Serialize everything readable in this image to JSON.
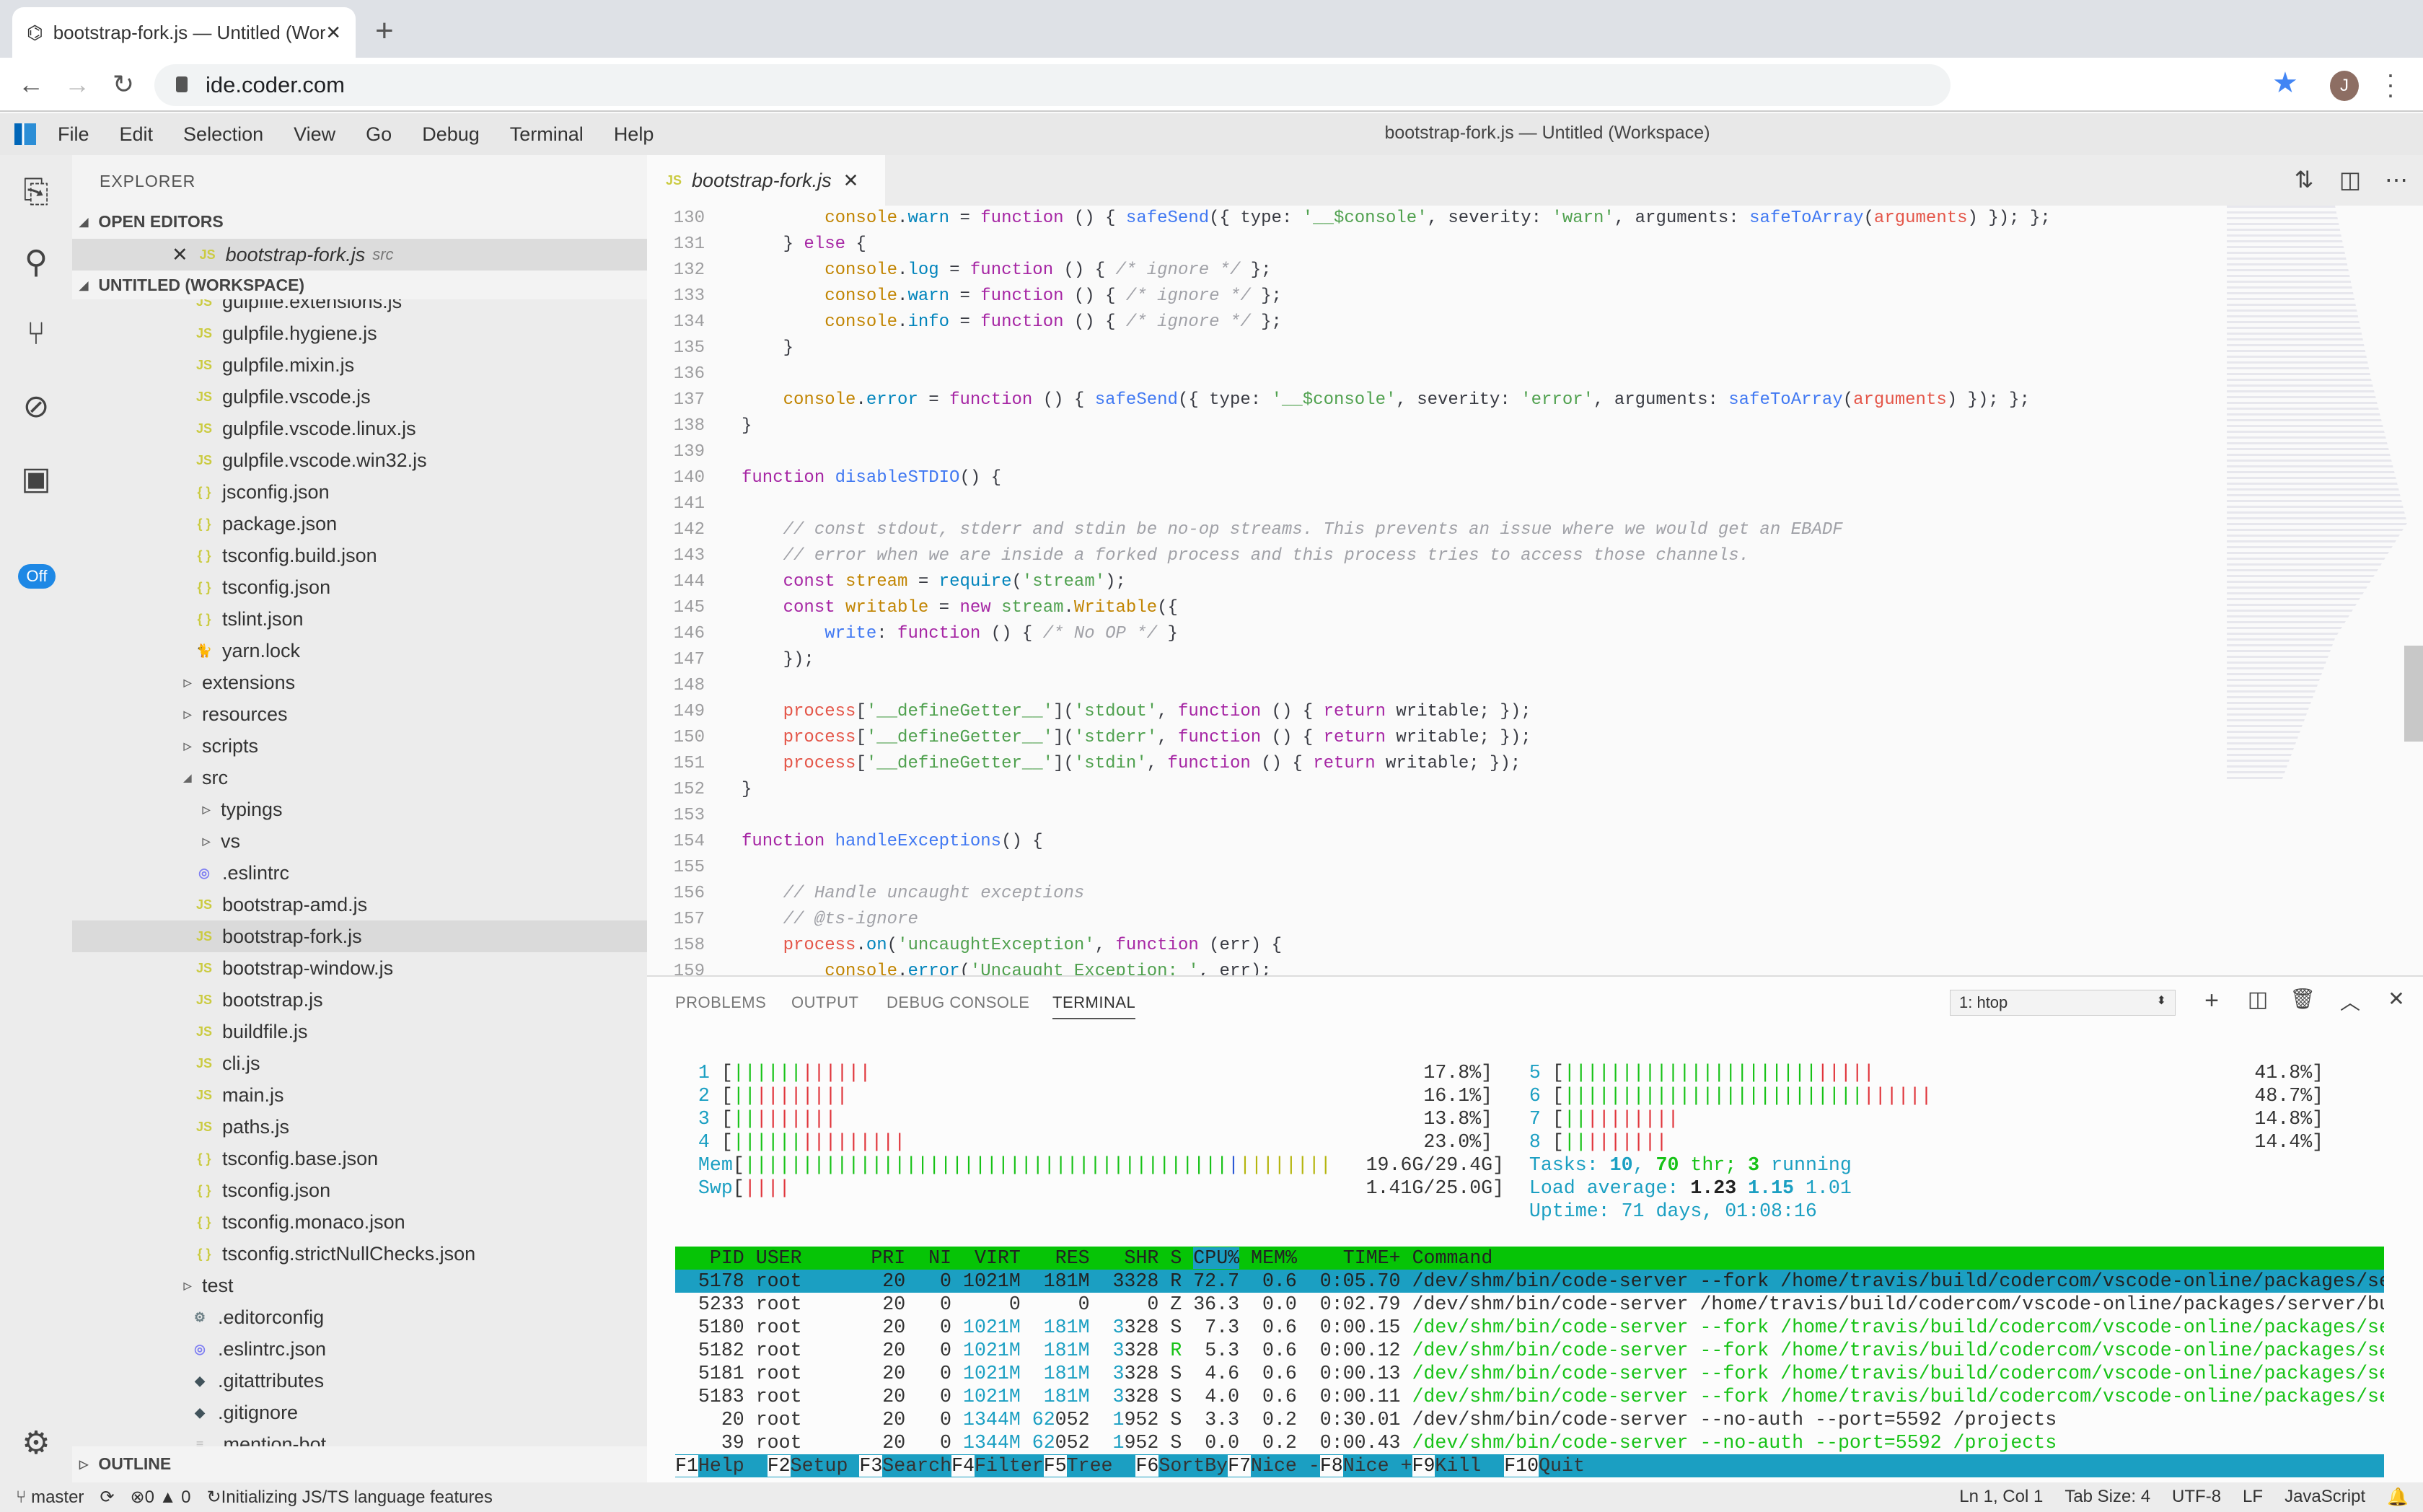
{
  "browser": {
    "tab_title": "bootstrap-fork.js — Untitled (Workspace)",
    "new_tab": "+",
    "url": "ide.coder.com",
    "avatar_letter": "J",
    "accent": "#4285f4"
  },
  "menubar": {
    "items": [
      "File",
      "Edit",
      "Selection",
      "View",
      "Go",
      "Debug",
      "Terminal",
      "Help"
    ],
    "window_title": "bootstrap-fork.js — Untitled (Workspace)"
  },
  "activity": {
    "icons": [
      "files-icon",
      "search-icon",
      "source-control-icon",
      "debug-icon",
      "extensions-icon"
    ],
    "badge": "Off"
  },
  "sidebar": {
    "title": "EXPLORER",
    "open_editors_label": "OPEN EDITORS",
    "open_editor": {
      "name": "bootstrap-fork.js",
      "dir": "src"
    },
    "workspace_label": "UNTITLED (WORKSPACE)",
    "outline_label": "OUTLINE",
    "files": [
      {
        "name": "gulpfile.extensions.js",
        "icon": "js",
        "level": 1
      },
      {
        "name": "gulpfile.hygiene.js",
        "icon": "js",
        "level": 1
      },
      {
        "name": "gulpfile.mixin.js",
        "icon": "js",
        "level": 1
      },
      {
        "name": "gulpfile.vscode.js",
        "icon": "js",
        "level": 1
      },
      {
        "name": "gulpfile.vscode.linux.js",
        "icon": "js",
        "level": 1
      },
      {
        "name": "gulpfile.vscode.win32.js",
        "icon": "js",
        "level": 1
      },
      {
        "name": "jsconfig.json",
        "icon": "json",
        "level": 1
      },
      {
        "name": "package.json",
        "icon": "json",
        "level": 1
      },
      {
        "name": "tsconfig.build.json",
        "icon": "json",
        "level": 1
      },
      {
        "name": "tsconfig.json",
        "icon": "json",
        "level": 1
      },
      {
        "name": "tslint.json",
        "icon": "json",
        "level": 1
      },
      {
        "name": "yarn.lock",
        "icon": "yarn",
        "level": 1
      },
      {
        "name": "extensions",
        "icon": "folder-closed",
        "level": 0
      },
      {
        "name": "resources",
        "icon": "folder-closed",
        "level": 0
      },
      {
        "name": "scripts",
        "icon": "folder-closed",
        "level": 0
      },
      {
        "name": "src",
        "icon": "folder-open",
        "level": 0
      },
      {
        "name": "typings",
        "icon": "folder-closed",
        "level": 1
      },
      {
        "name": "vs",
        "icon": "folder-closed",
        "level": 1
      },
      {
        "name": ".eslintrc",
        "icon": "eslint",
        "level": 1
      },
      {
        "name": "bootstrap-amd.js",
        "icon": "js",
        "level": 1
      },
      {
        "name": "bootstrap-fork.js",
        "icon": "js",
        "level": 1,
        "selected": true
      },
      {
        "name": "bootstrap-window.js",
        "icon": "js",
        "level": 1
      },
      {
        "name": "bootstrap.js",
        "icon": "js",
        "level": 1
      },
      {
        "name": "buildfile.js",
        "icon": "js",
        "level": 1
      },
      {
        "name": "cli.js",
        "icon": "js",
        "level": 1
      },
      {
        "name": "main.js",
        "icon": "js",
        "level": 1
      },
      {
        "name": "paths.js",
        "icon": "js",
        "level": 1
      },
      {
        "name": "tsconfig.base.json",
        "icon": "json",
        "level": 1
      },
      {
        "name": "tsconfig.json",
        "icon": "json",
        "level": 1
      },
      {
        "name": "tsconfig.monaco.json",
        "icon": "json",
        "level": 1
      },
      {
        "name": "tsconfig.strictNullChecks.json",
        "icon": "json",
        "level": 1
      },
      {
        "name": "test",
        "icon": "folder-closed",
        "level": 0
      },
      {
        "name": ".editorconfig",
        "icon": "gear",
        "level": 0
      },
      {
        "name": ".eslintrc.json",
        "icon": "eslint",
        "level": 0
      },
      {
        "name": ".gitattributes",
        "icon": "git",
        "level": 0
      },
      {
        "name": ".gitignore",
        "icon": "git",
        "level": 0
      },
      {
        "name": ".mention-bot",
        "icon": "lines",
        "level": 0
      }
    ]
  },
  "editor": {
    "tab": {
      "icon": "JS",
      "name": "bootstrap-fork.js"
    },
    "first_line": 130,
    "lines": [
      [
        [
          "        ",
          "t"
        ],
        [
          "console",
          "o"
        ],
        [
          ".",
          "t"
        ],
        [
          "warn",
          "p"
        ],
        [
          " = ",
          "t"
        ],
        [
          "function",
          "k"
        ],
        [
          " () { ",
          "t"
        ],
        [
          "safeSend",
          "f"
        ],
        [
          "({ type: ",
          "t"
        ],
        [
          "'__$console'",
          "s"
        ],
        [
          ", severity: ",
          "t"
        ],
        [
          "'warn'",
          "s"
        ],
        [
          ", arguments: ",
          "t"
        ],
        [
          "safeToArray",
          "f"
        ],
        [
          "(",
          "t"
        ],
        [
          "arguments",
          "v"
        ],
        [
          ") }); };",
          "t"
        ]
      ],
      [
        [
          "    } ",
          "t"
        ],
        [
          "else",
          "k"
        ],
        [
          " {",
          "t"
        ]
      ],
      [
        [
          "        ",
          "t"
        ],
        [
          "console",
          "o"
        ],
        [
          ".",
          "t"
        ],
        [
          "log",
          "p"
        ],
        [
          " = ",
          "t"
        ],
        [
          "function",
          "k"
        ],
        [
          " () { ",
          "t"
        ],
        [
          "/* ignore */",
          "c"
        ],
        [
          " };",
          "t"
        ]
      ],
      [
        [
          "        ",
          "t"
        ],
        [
          "console",
          "o"
        ],
        [
          ".",
          "t"
        ],
        [
          "warn",
          "p"
        ],
        [
          " = ",
          "t"
        ],
        [
          "function",
          "k"
        ],
        [
          " () { ",
          "t"
        ],
        [
          "/* ignore */",
          "c"
        ],
        [
          " };",
          "t"
        ]
      ],
      [
        [
          "        ",
          "t"
        ],
        [
          "console",
          "o"
        ],
        [
          ".",
          "t"
        ],
        [
          "info",
          "p"
        ],
        [
          " = ",
          "t"
        ],
        [
          "function",
          "k"
        ],
        [
          " () { ",
          "t"
        ],
        [
          "/* ignore */",
          "c"
        ],
        [
          " };",
          "t"
        ]
      ],
      [
        [
          "    }",
          "t"
        ]
      ],
      [],
      [
        [
          "    ",
          "t"
        ],
        [
          "console",
          "o"
        ],
        [
          ".",
          "t"
        ],
        [
          "error",
          "p"
        ],
        [
          " = ",
          "t"
        ],
        [
          "function",
          "k"
        ],
        [
          " () { ",
          "t"
        ],
        [
          "safeSend",
          "f"
        ],
        [
          "({ type: ",
          "t"
        ],
        [
          "'__$console'",
          "s"
        ],
        [
          ", severity: ",
          "t"
        ],
        [
          "'error'",
          "s"
        ],
        [
          ", arguments: ",
          "t"
        ],
        [
          "safeToArray",
          "f"
        ],
        [
          "(",
          "t"
        ],
        [
          "arguments",
          "v"
        ],
        [
          ") }); };",
          "t"
        ]
      ],
      [
        [
          "}",
          "t"
        ]
      ],
      [],
      [
        [
          "function",
          "k"
        ],
        [
          " ",
          "t"
        ],
        [
          "disableSTDIO",
          "f"
        ],
        [
          "() {",
          "t"
        ]
      ],
      [],
      [
        [
          "    ",
          "t"
        ],
        [
          "// const stdout, stderr and stdin be no-op streams. This prevents an issue where we would get an EBADF",
          "c"
        ]
      ],
      [
        [
          "    ",
          "t"
        ],
        [
          "// error when we are inside a forked process and this process tries to access those channels.",
          "c"
        ]
      ],
      [
        [
          "    ",
          "t"
        ],
        [
          "const",
          "k"
        ],
        [
          " ",
          "t"
        ],
        [
          "stream",
          "o"
        ],
        [
          " = ",
          "t"
        ],
        [
          "require",
          "p"
        ],
        [
          "(",
          "t"
        ],
        [
          "'stream'",
          "s"
        ],
        [
          ");",
          "t"
        ]
      ],
      [
        [
          "    ",
          "t"
        ],
        [
          "const",
          "k"
        ],
        [
          " ",
          "t"
        ],
        [
          "writable",
          "o"
        ],
        [
          " = ",
          "t"
        ],
        [
          "new",
          "k"
        ],
        [
          " ",
          "t"
        ],
        [
          "stream",
          "s"
        ],
        [
          ".",
          "t"
        ],
        [
          "Writable",
          "o"
        ],
        [
          "({",
          "t"
        ]
      ],
      [
        [
          "        ",
          "t"
        ],
        [
          "write",
          "f"
        ],
        [
          ": ",
          "t"
        ],
        [
          "function",
          "k"
        ],
        [
          " () { ",
          "t"
        ],
        [
          "/* No OP */",
          "c"
        ],
        [
          " }",
          "t"
        ]
      ],
      [
        [
          "    });",
          "t"
        ]
      ],
      [],
      [
        [
          "    ",
          "t"
        ],
        [
          "process",
          "v"
        ],
        [
          "[",
          "t"
        ],
        [
          "'__defineGetter__'",
          "s"
        ],
        [
          "](",
          "t"
        ],
        [
          "'stdout'",
          "s"
        ],
        [
          ", ",
          "t"
        ],
        [
          "function",
          "k"
        ],
        [
          " () { ",
          "t"
        ],
        [
          "return",
          "k"
        ],
        [
          " writable; });",
          "t"
        ]
      ],
      [
        [
          "    ",
          "t"
        ],
        [
          "process",
          "v"
        ],
        [
          "[",
          "t"
        ],
        [
          "'__defineGetter__'",
          "s"
        ],
        [
          "](",
          "t"
        ],
        [
          "'stderr'",
          "s"
        ],
        [
          ", ",
          "t"
        ],
        [
          "function",
          "k"
        ],
        [
          " () { ",
          "t"
        ],
        [
          "return",
          "k"
        ],
        [
          " writable; });",
          "t"
        ]
      ],
      [
        [
          "    ",
          "t"
        ],
        [
          "process",
          "v"
        ],
        [
          "[",
          "t"
        ],
        [
          "'__defineGetter__'",
          "s"
        ],
        [
          "](",
          "t"
        ],
        [
          "'stdin'",
          "s"
        ],
        [
          ", ",
          "t"
        ],
        [
          "function",
          "k"
        ],
        [
          " () { ",
          "t"
        ],
        [
          "return",
          "k"
        ],
        [
          " writable; });",
          "t"
        ]
      ],
      [
        [
          "}",
          "t"
        ]
      ],
      [],
      [
        [
          "function",
          "k"
        ],
        [
          " ",
          "t"
        ],
        [
          "handleExceptions",
          "f"
        ],
        [
          "() {",
          "t"
        ]
      ],
      [],
      [
        [
          "    ",
          "t"
        ],
        [
          "// Handle uncaught exceptions",
          "c"
        ]
      ],
      [
        [
          "    ",
          "t"
        ],
        [
          "// @ts-ignore",
          "c"
        ]
      ],
      [
        [
          "    ",
          "t"
        ],
        [
          "process",
          "v"
        ],
        [
          ".",
          "t"
        ],
        [
          "on",
          "p"
        ],
        [
          "(",
          "t"
        ],
        [
          "'uncaughtException'",
          "s"
        ],
        [
          ", ",
          "t"
        ],
        [
          "function",
          "k"
        ],
        [
          " (err) {",
          "t"
        ]
      ],
      [
        [
          "        ",
          "t"
        ],
        [
          "console",
          "o"
        ],
        [
          ".",
          "t"
        ],
        [
          "error",
          "p"
        ],
        [
          "(",
          "t"
        ],
        [
          "'Uncaught Exception: '",
          "s"
        ],
        [
          ", err);",
          "t"
        ]
      ]
    ]
  },
  "panel": {
    "tabs": [
      "PROBLEMS",
      "OUTPUT",
      "DEBUG CONSOLE",
      "TERMINAL"
    ],
    "active_tab": "TERMINAL",
    "terminal_select": "1: htop"
  },
  "htop": {
    "cpus": [
      {
        "id": "1",
        "percent": "17.8%",
        "user": 8.9,
        "system": 8.9
      },
      {
        "id": "2",
        "percent": "16.1%",
        "user": 3.2,
        "system": 12.9
      },
      {
        "id": "3",
        "percent": "13.8%",
        "user": 3.2,
        "system": 10.6
      },
      {
        "id": "4",
        "percent": "23.0%",
        "user": 9.2,
        "system": 13.8
      },
      {
        "id": "5",
        "percent": "41.8%",
        "user": 33.8,
        "system": 8.0
      },
      {
        "id": "6",
        "percent": "48.7%",
        "user": 40.0,
        "system": 8.7
      },
      {
        "id": "7",
        "percent": "14.8%",
        "user": 3.1,
        "system": 11.7
      },
      {
        "id": "8",
        "percent": "14.4%",
        "user": 3.1,
        "system": 11.3
      }
    ],
    "mem": {
      "label": "Mem",
      "value": "19.6G/29.4G",
      "used_pct": 66,
      "buffers_pct": 1.5,
      "cache_pct": 14
    },
    "swp": {
      "label": "Swp",
      "value": "1.41G/25.0G",
      "used_pct": 5.6
    },
    "tasks": {
      "label": "Tasks: ",
      "tasks": "10",
      "threads": "70",
      "thr_label": " thr; ",
      "running": "3",
      "running_label": " running"
    },
    "load": {
      "label": "Load average: ",
      "l1": "1.23",
      "l5": "1.15",
      "l15": "1.01"
    },
    "uptime": "Uptime: 71 days, 01:08:16",
    "columns": [
      "PID",
      "USER",
      "PRI",
      "NI",
      "VIRT",
      "RES",
      "SHR",
      "S",
      "CPU%",
      "MEM%",
      "TIME+",
      "Command"
    ],
    "sort_column": "CPU%",
    "processes": [
      {
        "pid": "5178",
        "user": "root",
        "pri": "20",
        "ni": "0",
        "virt": "1021M",
        "res": "181M",
        "shr": "3328",
        "s": "R",
        "cpu": "72.7",
        "mem": "0.6",
        "time": "0:05.70",
        "command": "/dev/shm/bin/code-server --fork /home/travis/build/codercom/vscode-online/packages/server/build/bootstrap-fork.js",
        "thread": false,
        "selected": true
      },
      {
        "pid": "5233",
        "user": "root",
        "pri": "20",
        "ni": "0",
        "virt": "0",
        "res": "0",
        "shr": "0",
        "s": "Z",
        "cpu": "36.3",
        "mem": "0.0",
        "time": "0:02.79",
        "command": "/dev/shm/bin/code-server /home/travis/build/codercom/vscode-online/packages/server/build",
        "thread": false
      },
      {
        "pid": "5180",
        "user": "root",
        "pri": "20",
        "ni": "0",
        "virt": "1021M",
        "res": "181M",
        "shr": "3328",
        "s": "S",
        "cpu": "7.3",
        "mem": "0.6",
        "time": "0:00.15",
        "command": "/dev/shm/bin/code-server --fork /home/travis/build/codercom/vscode-online/packages/server/build",
        "thread": true
      },
      {
        "pid": "5182",
        "user": "root",
        "pri": "20",
        "ni": "0",
        "virt": "1021M",
        "res": "181M",
        "shr": "3328",
        "s": "R",
        "cpu": "5.3",
        "mem": "0.6",
        "time": "0:00.12",
        "command": "/dev/shm/bin/code-server --fork /home/travis/build/codercom/vscode-online/packages/server/build",
        "thread": true
      },
      {
        "pid": "5181",
        "user": "root",
        "pri": "20",
        "ni": "0",
        "virt": "1021M",
        "res": "181M",
        "shr": "3328",
        "s": "S",
        "cpu": "4.6",
        "mem": "0.6",
        "time": "0:00.13",
        "command": "/dev/shm/bin/code-server --fork /home/travis/build/codercom/vscode-online/packages/server/build",
        "thread": true
      },
      {
        "pid": "5183",
        "user": "root",
        "pri": "20",
        "ni": "0",
        "virt": "1021M",
        "res": "181M",
        "shr": "3328",
        "s": "S",
        "cpu": "4.0",
        "mem": "0.6",
        "time": "0:00.11",
        "command": "/dev/shm/bin/code-server --fork /home/travis/build/codercom/vscode-online/packages/server/build",
        "thread": true
      },
      {
        "pid": "20",
        "user": "root",
        "pri": "20",
        "ni": "0",
        "virt": "1344M",
        "res": "62052",
        "shr": "1952",
        "s": "S",
        "cpu": "3.3",
        "mem": "0.2",
        "time": "0:30.01",
        "command": "/dev/shm/bin/code-server --no-auth --port=5592 /projects",
        "thread": false
      },
      {
        "pid": "39",
        "user": "root",
        "pri": "20",
        "ni": "0",
        "virt": "1344M",
        "res": "62052",
        "shr": "1952",
        "s": "S",
        "cpu": "0.0",
        "mem": "0.2",
        "time": "0:00.43",
        "command": "/dev/shm/bin/code-server --no-auth --port=5592 /projects",
        "thread": true
      }
    ],
    "function_keys": [
      [
        "F1",
        "Help"
      ],
      [
        "F2",
        "Setup"
      ],
      [
        "F3",
        "Search"
      ],
      [
        "F4",
        "Filter"
      ],
      [
        "F5",
        "Tree"
      ],
      [
        "F6",
        "SortBy"
      ],
      [
        "F7",
        "Nice -"
      ],
      [
        "F8",
        "Nice +"
      ],
      [
        "F9",
        "Kill"
      ],
      [
        "F10",
        "Quit"
      ]
    ]
  },
  "statusbar": {
    "branch": "master",
    "errors": "0",
    "warnings": "0",
    "progress": "Initializing JS/TS language features",
    "position": "Ln 1, Col 1",
    "tab_size": "Tab Size: 4",
    "encoding": "UTF-8",
    "eol": "LF",
    "language": "JavaScript"
  }
}
